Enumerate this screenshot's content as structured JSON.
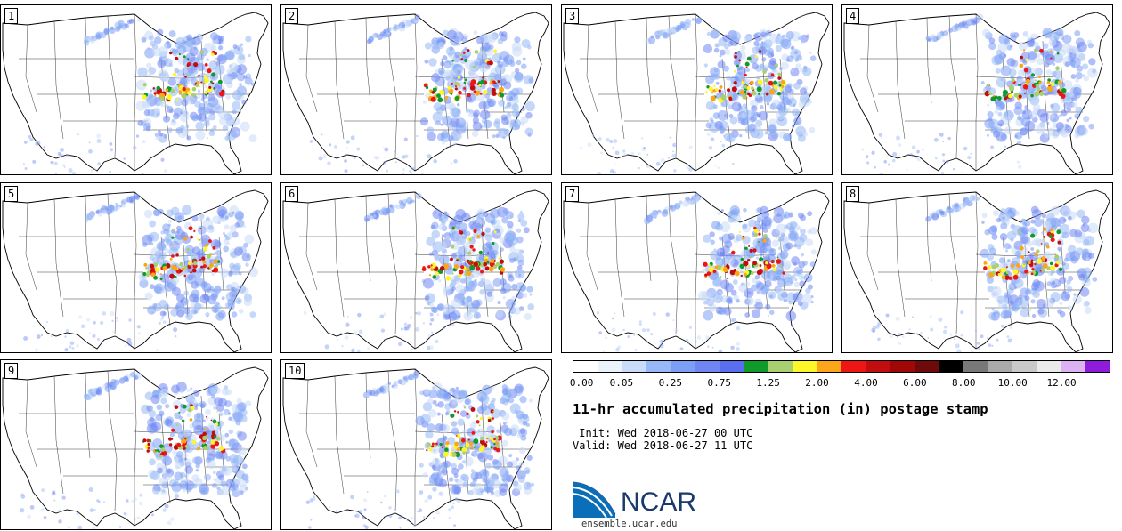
{
  "panels": [
    {
      "label": "1"
    },
    {
      "label": "2"
    },
    {
      "label": "3"
    },
    {
      "label": "4"
    },
    {
      "label": "5"
    },
    {
      "label": "6"
    },
    {
      "label": "7"
    },
    {
      "label": "8"
    },
    {
      "label": "9"
    },
    {
      "label": "10"
    }
  ],
  "colorbar": {
    "colors": [
      "#ffffff",
      "#eaf2fc",
      "#c8dbf8",
      "#96b8f6",
      "#7c9ef5",
      "#6f86f2",
      "#5a6ef0",
      "#0f9a2a",
      "#a9d070",
      "#fdf72a",
      "#fba51b",
      "#ee1515",
      "#c00d0d",
      "#a00707",
      "#6f0a0a",
      "#000000",
      "#787878",
      "#a9a9a9",
      "#c8c8c8",
      "#eaeaea",
      "#ddb2f2",
      "#8f1bdc"
    ],
    "ticks": [
      "0.00",
      "0.05",
      "0.25",
      "0.75",
      "1.25",
      "2.00",
      "4.00",
      "6.00",
      "8.00",
      "10.00",
      "12.00"
    ]
  },
  "title": "11-hr accumulated precipitation (in) postage stamp",
  "init": " Init: Wed 2018-06-27 00 UTC",
  "valid": "Valid: Wed 2018-06-27 11 UTC",
  "logo": {
    "text": "NCAR",
    "url": "ensemble.ucar.edu"
  }
}
